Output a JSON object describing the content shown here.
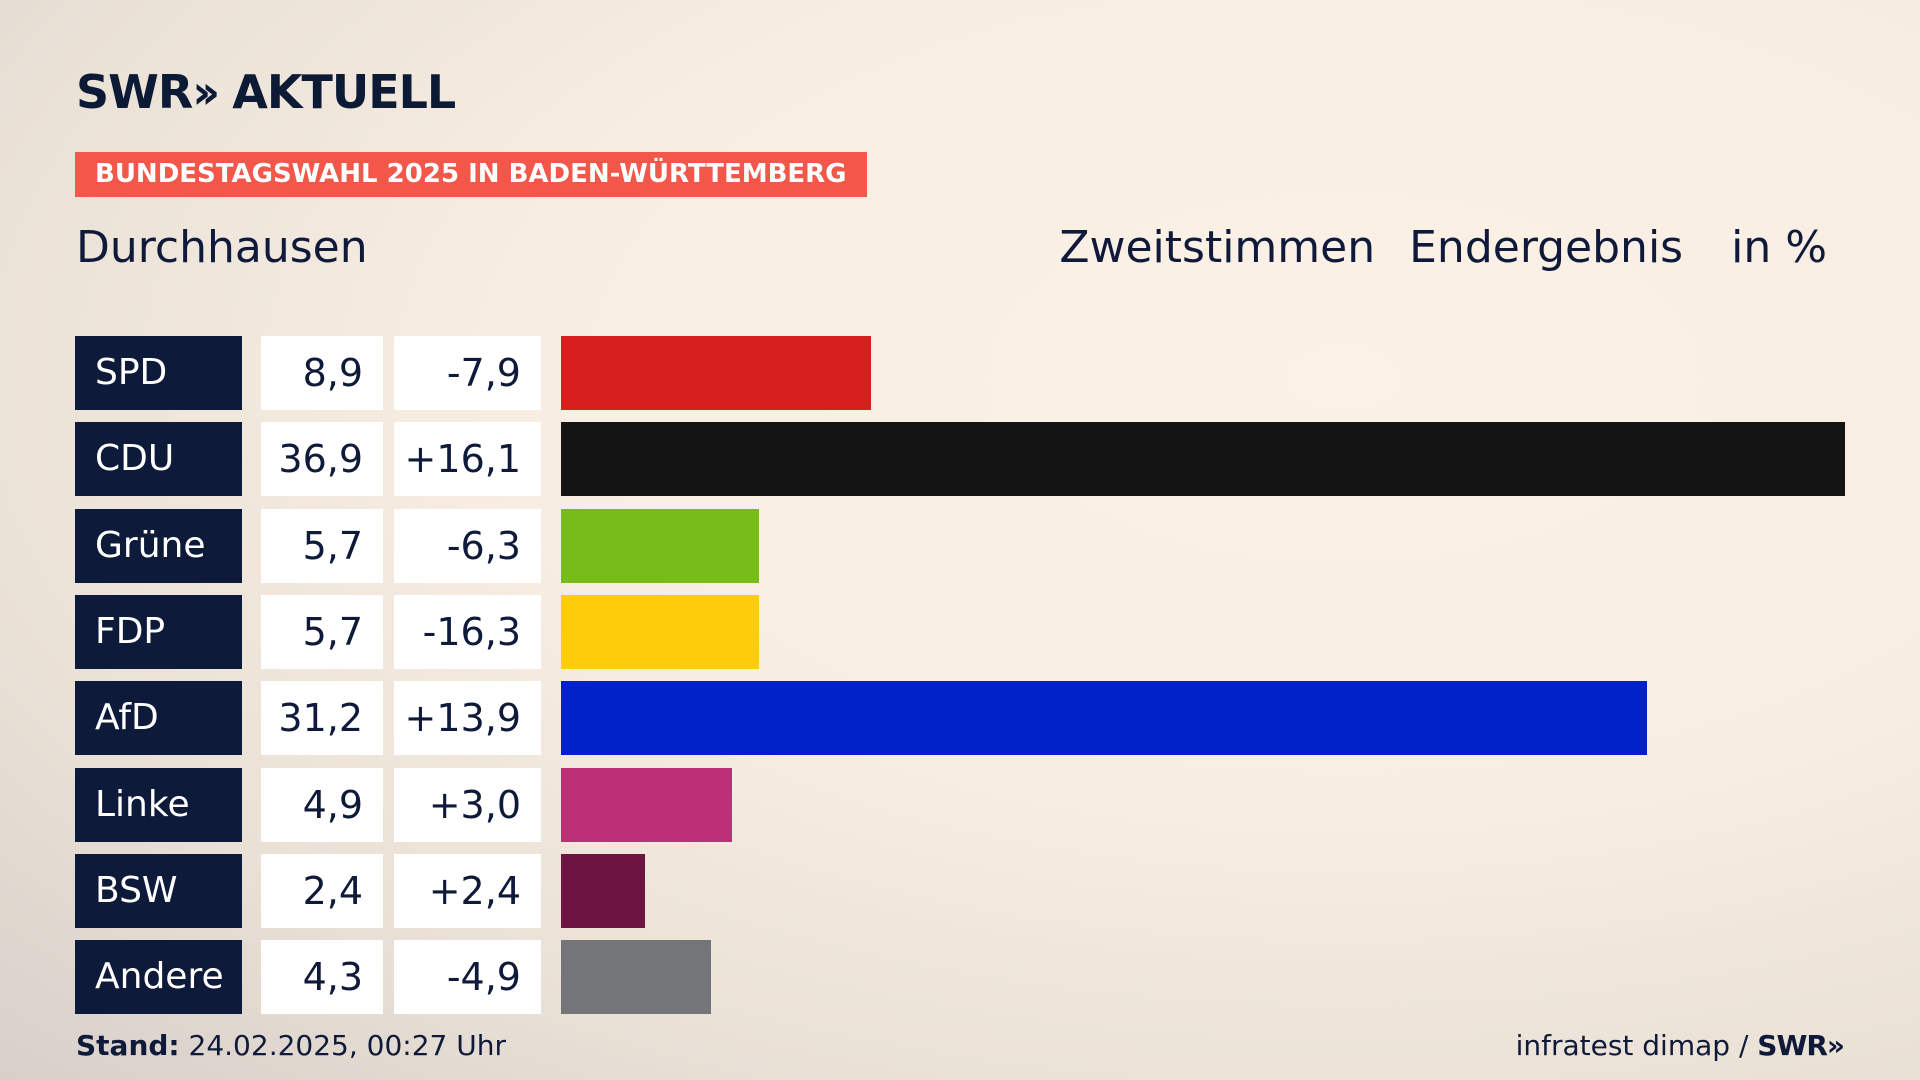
{
  "brand": {
    "logo_text": "SWR",
    "logo_arrows": "››",
    "logo_sub": "AKTUELL"
  },
  "topic_label": "BUNDESTAGSWAHL 2025 IN BADEN-WÜRTTEMBERG",
  "place": "Durchhausen",
  "heading": {
    "vote_type": "Zweitstimmen",
    "status": "Endergebnis",
    "unit": "in %"
  },
  "colors": {
    "header_bg": "#0e1a3a",
    "topic_bg": "#f2574a"
  },
  "chart_data": {
    "type": "bar",
    "orientation": "horizontal",
    "categories": [
      "SPD",
      "CDU",
      "Grüne",
      "FDP",
      "AfD",
      "Linke",
      "BSW",
      "Andere"
    ],
    "values": [
      8.9,
      36.9,
      5.7,
      5.7,
      31.2,
      4.9,
      2.4,
      4.3
    ],
    "value_labels": [
      "8,9",
      "36,9",
      "5,7",
      "5,7",
      "31,2",
      "4,9",
      "2,4",
      "4,3"
    ],
    "changes": [
      -7.9,
      16.1,
      -6.3,
      -16.3,
      13.9,
      3.0,
      2.4,
      -4.9
    ],
    "change_labels": [
      "-7,9",
      "+16,1",
      "-6,3",
      "-16,3",
      "+13,9",
      "+3,0",
      "+2,4",
      "-4,9"
    ],
    "colors": [
      "#d71f20",
      "#141414",
      "#78bc1c",
      "#fdcc0a",
      "#0021c8",
      "#bb3077",
      "#6b1540",
      "#747578"
    ],
    "xlim": [
      0,
      36.9
    ]
  },
  "footer": {
    "stand_label": "Stand:",
    "stand_value": "24.02.2025, 00:27 Uhr",
    "source": "infratest dimap /",
    "source_brand": "SWR»"
  }
}
